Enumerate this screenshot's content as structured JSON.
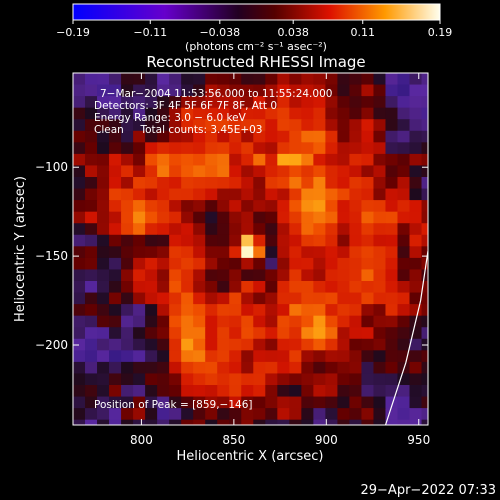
{
  "chart_data": {
    "type": "heatmap",
    "title": "Reconstructed RHESSI Image",
    "xlabel": "Heliocentric X (arcsec)",
    "ylabel": "Heliocentric Y (arcsec)",
    "xlim": [
      763,
      955
    ],
    "ylim": [
      -245,
      -47
    ],
    "xticks": [
      800,
      850,
      900,
      950
    ],
    "yticks": [
      -100,
      -150,
      -200
    ],
    "xtick_labels": [
      "800",
      "850",
      "900",
      "950"
    ],
    "ytick_labels": [
      "−100",
      "−150",
      "−200"
    ],
    "colorbar": {
      "range": [
        -0.19,
        0.19
      ],
      "ticks": [
        -0.19,
        -0.11,
        -0.038,
        0.038,
        0.11,
        0.19
      ],
      "tick_labels": [
        "−0.19",
        "−0.11",
        "−0.038",
        "0.038",
        "0.11",
        "0.19"
      ],
      "unit_label": "(photons cm⁻² s⁻¹ asec⁻²)"
    },
    "annotations": [
      "7−Mar−2004 11:53:56.000 to 11:55:24.000",
      "Detectors: 3F 4F 5F 6F 7F 8F, Att 0",
      "Energy Range: 3.0 − 6.0 keV",
      "Clean     Total counts: 3.45E+03"
    ],
    "peak_label": "Position of Peak = [859,−146]",
    "peak": [
      859,
      -146
    ],
    "limb_curve": [
      [
        932,
        -245
      ],
      [
        943,
        -210
      ],
      [
        951,
        -175
      ],
      [
        955,
        -147
      ]
    ]
  },
  "timestamp": "29−Apr−2022 07:33"
}
